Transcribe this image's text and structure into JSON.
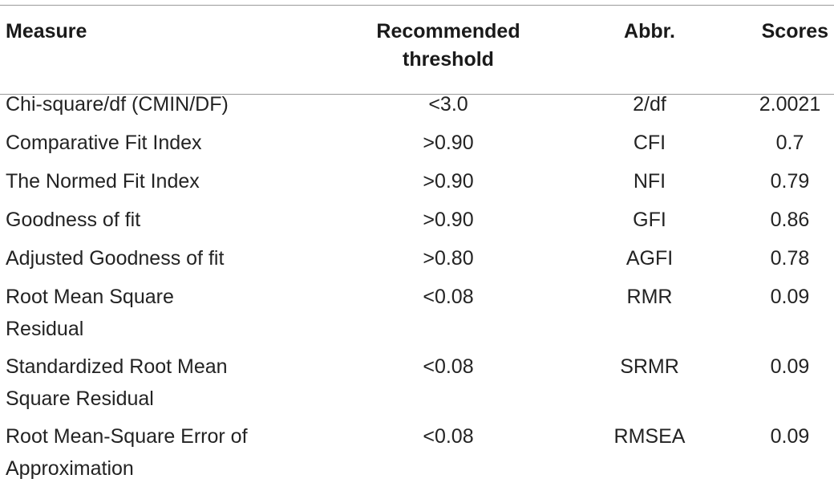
{
  "table": {
    "headers": {
      "measure": "Measure",
      "threshold_line1": "Recommended",
      "threshold_line2": "threshold",
      "abbr": "Abbr.",
      "scores": "Scores"
    },
    "rows": [
      {
        "measure_l1": "Chi-square/df (CMIN/DF)",
        "measure_l2": "",
        "threshold": "<3.0",
        "abbr": "2/df",
        "score": "2.0021"
      },
      {
        "measure_l1": "Comparative Fit Index",
        "measure_l2": "",
        "threshold": ">0.90",
        "abbr": "CFI",
        "score": "0.7"
      },
      {
        "measure_l1": "The Normed Fit Index",
        "measure_l2": "",
        "threshold": ">0.90",
        "abbr": "NFI",
        "score": "0.79"
      },
      {
        "measure_l1": "Goodness of fit",
        "measure_l2": "",
        "threshold": ">0.90",
        "abbr": "GFI",
        "score": "0.86"
      },
      {
        "measure_l1": "Adjusted Goodness of fit",
        "measure_l2": "",
        "threshold": ">0.80",
        "abbr": "AGFI",
        "score": "0.78"
      },
      {
        "measure_l1": "Root Mean Square",
        "measure_l2": "Residual",
        "threshold": "<0.08",
        "abbr": "RMR",
        "score": "0.09"
      },
      {
        "measure_l1": "Standardized Root Mean",
        "measure_l2": "Square Residual",
        "threshold": "<0.08",
        "abbr": "SRMR",
        "score": "0.09"
      },
      {
        "measure_l1": "Root Mean-Square Error of",
        "measure_l2": "Approximation",
        "threshold": "<0.08",
        "abbr": "RMSEA",
        "score": "0.09"
      }
    ]
  }
}
